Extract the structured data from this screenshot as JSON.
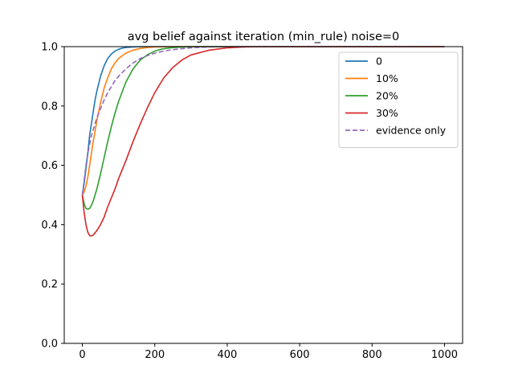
{
  "chart_data": {
    "type": "line",
    "title": "avg belief against iteration (min_rule) noise=0",
    "xlabel": "",
    "ylabel": "",
    "xlim": [
      -50,
      1050
    ],
    "ylim": [
      0.0,
      1.0
    ],
    "x_ticks": [
      0,
      200,
      400,
      600,
      800,
      1000
    ],
    "y_ticks": [
      0.0,
      0.2,
      0.4,
      0.6,
      0.8,
      1.0
    ],
    "x_tick_labels": [
      "0",
      "200",
      "400",
      "600",
      "800",
      "1000"
    ],
    "y_tick_labels": [
      "0.0",
      "0.2",
      "0.4",
      "0.6",
      "0.8",
      "1.0"
    ],
    "grid": false,
    "legend_position": "top-right",
    "series": [
      {
        "name": "0",
        "color": "#1f77b4",
        "dash": "solid",
        "x": [
          0,
          5,
          10,
          15,
          20,
          25,
          30,
          35,
          40,
          50,
          60,
          70,
          80,
          90,
          100,
          110,
          120,
          140,
          160,
          180,
          200,
          1000
        ],
        "y": [
          0.5,
          0.54,
          0.59,
          0.64,
          0.7,
          0.74,
          0.78,
          0.82,
          0.85,
          0.9,
          0.935,
          0.96,
          0.975,
          0.985,
          0.991,
          0.995,
          0.997,
          0.999,
          1.0,
          1.0,
          1.0,
          1.0
        ]
      },
      {
        "name": "10%",
        "color": "#ff7f0e",
        "dash": "solid",
        "x": [
          0,
          5,
          10,
          15,
          20,
          25,
          30,
          40,
          50,
          60,
          70,
          80,
          90,
          100,
          120,
          140,
          160,
          180,
          200,
          250,
          1000
        ],
        "y": [
          0.5,
          0.51,
          0.53,
          0.56,
          0.6,
          0.64,
          0.68,
          0.75,
          0.81,
          0.86,
          0.895,
          0.925,
          0.945,
          0.96,
          0.978,
          0.988,
          0.994,
          0.997,
          0.999,
          1.0,
          1.0
        ]
      },
      {
        "name": "20%",
        "color": "#2ca02c",
        "dash": "solid",
        "x": [
          0,
          5,
          10,
          15,
          20,
          25,
          30,
          40,
          50,
          60,
          70,
          80,
          90,
          100,
          120,
          140,
          160,
          180,
          200,
          220,
          250,
          300,
          1000
        ],
        "y": [
          0.5,
          0.47,
          0.455,
          0.452,
          0.455,
          0.465,
          0.48,
          0.52,
          0.57,
          0.625,
          0.68,
          0.73,
          0.775,
          0.815,
          0.88,
          0.925,
          0.955,
          0.973,
          0.985,
          0.992,
          0.997,
          1.0,
          1.0
        ]
      },
      {
        "name": "30%",
        "color": "#d62728",
        "dash": "solid",
        "x": [
          0,
          5,
          10,
          15,
          20,
          25,
          30,
          40,
          50,
          60,
          70,
          80,
          90,
          100,
          120,
          140,
          160,
          180,
          200,
          225,
          250,
          275,
          300,
          350,
          400,
          450,
          500,
          1000
        ],
        "y": [
          0.5,
          0.44,
          0.4,
          0.375,
          0.363,
          0.362,
          0.365,
          0.38,
          0.4,
          0.425,
          0.46,
          0.49,
          0.52,
          0.555,
          0.615,
          0.68,
          0.74,
          0.795,
          0.845,
          0.895,
          0.93,
          0.955,
          0.972,
          0.988,
          0.996,
          0.999,
          1.0,
          1.0
        ]
      },
      {
        "name": "evidence only",
        "color": "#9467bd",
        "dash": "dashed",
        "x": [
          0,
          5,
          10,
          15,
          20,
          25,
          30,
          40,
          50,
          60,
          70,
          80,
          90,
          100,
          120,
          140,
          160,
          180,
          200,
          225,
          250,
          300,
          350,
          400,
          1000
        ],
        "y": [
          0.5,
          0.55,
          0.6,
          0.64,
          0.67,
          0.7,
          0.72,
          0.76,
          0.79,
          0.82,
          0.845,
          0.865,
          0.885,
          0.9,
          0.925,
          0.945,
          0.96,
          0.97,
          0.978,
          0.985,
          0.99,
          0.996,
          0.999,
          1.0,
          1.0
        ]
      }
    ]
  }
}
